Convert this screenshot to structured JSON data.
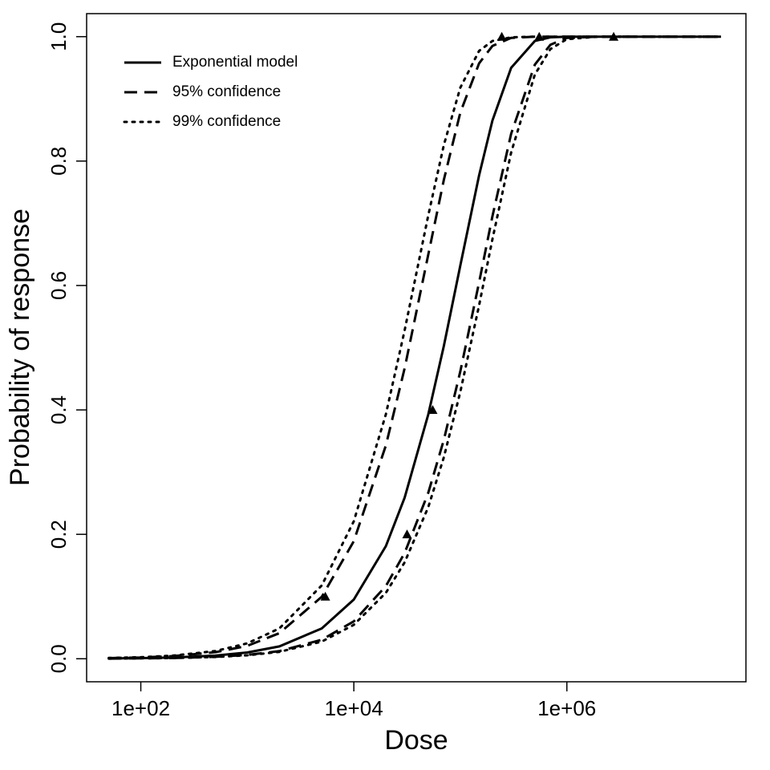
{
  "chart_data": {
    "type": "line",
    "xlabel": "Dose",
    "ylabel": "Probability of response",
    "xscale": "log",
    "xlim": [
      31,
      48000000
    ],
    "ylim": [
      -0.037,
      1.037
    ],
    "xticks": [
      {
        "value": 100,
        "label": "1e+02"
      },
      {
        "value": 10000,
        "label": "1e+04"
      },
      {
        "value": 1000000,
        "label": "1e+06"
      }
    ],
    "yticks": [
      {
        "value": 0,
        "label": "0.0"
      },
      0.2,
      0.4,
      0.6,
      0.8,
      {
        "value": 1,
        "label": "1.0"
      }
    ],
    "legend": "top-left",
    "color": "#000000",
    "x": [
      50,
      100,
      200,
      500,
      1000,
      2000,
      5000,
      10000,
      20000,
      30000,
      50000,
      70000,
      100000,
      150000,
      200000,
      300000,
      500000,
      700000,
      1000000,
      2000000,
      5000000,
      28000000
    ],
    "series": [
      {
        "name": "Exponential model",
        "dash": "solid",
        "values": [
          0.0005,
          0.001,
          0.002,
          0.005,
          0.01,
          0.0198,
          0.0488,
          0.0952,
          0.181,
          0.259,
          0.393,
          0.503,
          0.632,
          0.777,
          0.865,
          0.95,
          0.993,
          0.999,
          1,
          1,
          1,
          1
        ]
      },
      {
        "name": "95% confidence",
        "dash": "dashed",
        "upper": [
          0.001,
          0.0021,
          0.0042,
          0.0104,
          0.0208,
          0.0411,
          0.0997,
          0.189,
          0.343,
          0.467,
          0.65,
          0.77,
          0.878,
          0.957,
          0.985,
          0.998,
          1,
          1,
          1,
          1,
          1,
          1
        ],
        "lower": [
          0.0003,
          0.0006,
          0.0012,
          0.0031,
          0.0062,
          0.0123,
          0.0305,
          0.0601,
          0.117,
          0.17,
          0.267,
          0.352,
          0.462,
          0.605,
          0.711,
          0.844,
          0.955,
          0.987,
          0.998,
          1,
          1,
          1
        ]
      },
      {
        "name": "99% confidence",
        "dash": "dotted",
        "upper": [
          0.00125,
          0.0025,
          0.005,
          0.0124,
          0.0247,
          0.0488,
          0.118,
          0.221,
          0.393,
          0.528,
          0.713,
          0.826,
          0.918,
          0.977,
          0.993,
          0.999,
          1,
          1,
          1,
          1,
          1,
          1
        ],
        "lower": [
          0.0003,
          0.0006,
          0.0011,
          0.0028,
          0.0056,
          0.0111,
          0.0276,
          0.0545,
          0.106,
          0.155,
          0.244,
          0.324,
          0.429,
          0.568,
          0.674,
          0.814,
          0.939,
          0.98,
          0.996,
          1,
          1,
          1
        ]
      }
    ],
    "points": {
      "x": [
        5400,
        31600,
        55000,
        245000,
        550000,
        2750000
      ],
      "y": [
        0.1,
        0.2,
        0.4,
        1,
        1,
        1
      ]
    }
  }
}
